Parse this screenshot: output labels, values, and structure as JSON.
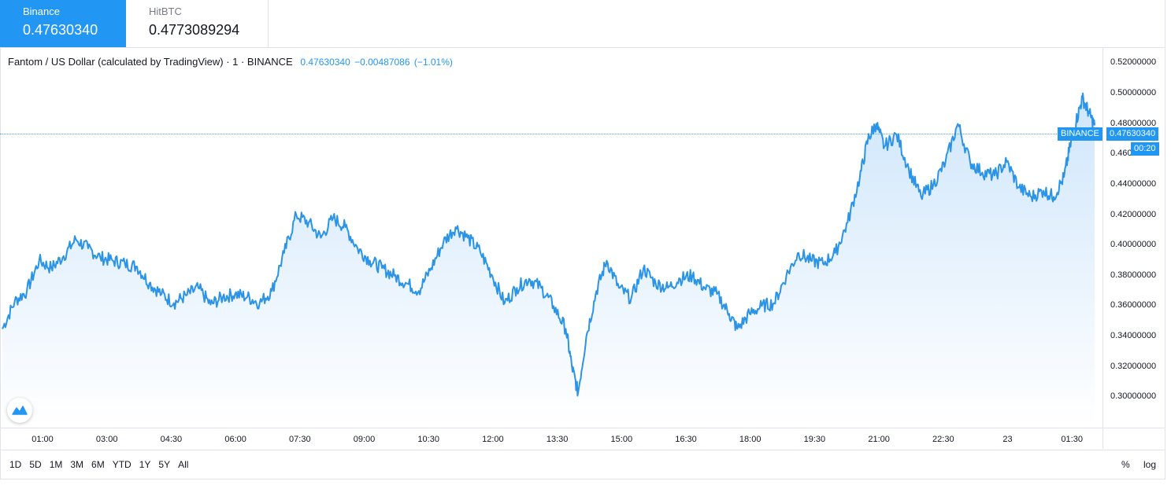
{
  "tabs": [
    {
      "name": "Binance",
      "price": "0.47630340",
      "active": true
    },
    {
      "name": "HitBTC",
      "price": "0.4773089294",
      "active": false
    }
  ],
  "legend": {
    "title": "Fantom / US Dollar (calculated by TradingView) · 1 · BINANCE",
    "last": "0.47630340",
    "change": "−0.00487086",
    "change_pct": "(−1.01%)"
  },
  "badges": {
    "exchange": "BINANCE",
    "price": "0.47630340",
    "countdown": "00:20"
  },
  "ranges": [
    "1D",
    "5D",
    "1M",
    "3M",
    "6M",
    "YTD",
    "1Y",
    "5Y",
    "All"
  ],
  "axis_options": {
    "percent": "%",
    "log": "log"
  },
  "colors": {
    "accent": "#2196f3",
    "line": "#2b94e6",
    "fill_top": "#cfe6fb",
    "fill_bottom": "#ffffff"
  },
  "icons": {
    "logo": "tradingview-logo-icon"
  },
  "chart_data": {
    "type": "area",
    "title": "Fantom / US Dollar (calculated by TradingView)",
    "xlabel": "",
    "ylabel": "",
    "ylim": [
      0.28,
      0.53
    ],
    "y_ticks": [
      "0.30000000",
      "0.32000000",
      "0.34000000",
      "0.36000000",
      "0.38000000",
      "0.40000000",
      "0.42000000",
      "0.44000000",
      "0.46000000",
      "0.48000000",
      "0.50000000",
      "0.52000000"
    ],
    "x_ticks": [
      "01:00",
      "03:00",
      "04:30",
      "06:00",
      "07:30",
      "09:00",
      "10:30",
      "12:00",
      "13:30",
      "15:00",
      "16:30",
      "18:00",
      "19:30",
      "21:00",
      "22:30",
      "23",
      "01:30"
    ],
    "grid": false,
    "series": [
      {
        "points": [
          [
            0,
            0.345
          ],
          [
            0.3,
            0.363
          ],
          [
            0.6,
            0.37
          ],
          [
            0.9,
            0.39
          ],
          [
            1.2,
            0.385
          ],
          [
            1.5,
            0.393
          ],
          [
            1.8,
            0.404
          ],
          [
            2.1,
            0.398
          ],
          [
            2.4,
            0.392
          ],
          [
            2.7,
            0.39
          ],
          [
            3.0,
            0.388
          ],
          [
            3.3,
            0.386
          ],
          [
            3.6,
            0.375
          ],
          [
            3.9,
            0.368
          ],
          [
            4.2,
            0.362
          ],
          [
            4.5,
            0.367
          ],
          [
            4.8,
            0.372
          ],
          [
            5.1,
            0.361
          ],
          [
            5.4,
            0.366
          ],
          [
            5.7,
            0.368
          ],
          [
            6.0,
            0.366
          ],
          [
            6.3,
            0.362
          ],
          [
            6.6,
            0.37
          ],
          [
            6.9,
            0.395
          ],
          [
            7.2,
            0.42
          ],
          [
            7.5,
            0.415
          ],
          [
            7.8,
            0.405
          ],
          [
            8.1,
            0.418
          ],
          [
            8.4,
            0.412
          ],
          [
            8.7,
            0.398
          ],
          [
            9.0,
            0.39
          ],
          [
            9.3,
            0.385
          ],
          [
            9.6,
            0.38
          ],
          [
            9.9,
            0.375
          ],
          [
            10.2,
            0.37
          ],
          [
            10.5,
            0.385
          ],
          [
            10.8,
            0.402
          ],
          [
            11.1,
            0.412
          ],
          [
            11.4,
            0.405
          ],
          [
            11.7,
            0.396
          ],
          [
            12.0,
            0.38
          ],
          [
            12.3,
            0.362
          ],
          [
            12.6,
            0.372
          ],
          [
            12.9,
            0.378
          ],
          [
            13.2,
            0.372
          ],
          [
            13.5,
            0.36
          ],
          [
            13.8,
            0.345
          ],
          [
            13.95,
            0.32
          ],
          [
            14.1,
            0.303
          ],
          [
            14.3,
            0.34
          ],
          [
            14.55,
            0.37
          ],
          [
            14.8,
            0.39
          ],
          [
            15.1,
            0.372
          ],
          [
            15.4,
            0.365
          ],
          [
            15.7,
            0.385
          ],
          [
            16.0,
            0.375
          ],
          [
            16.3,
            0.372
          ],
          [
            16.6,
            0.378
          ],
          [
            16.9,
            0.38
          ],
          [
            17.2,
            0.372
          ],
          [
            17.5,
            0.368
          ],
          [
            17.8,
            0.355
          ],
          [
            18.0,
            0.345
          ],
          [
            18.3,
            0.355
          ],
          [
            18.6,
            0.36
          ],
          [
            18.9,
            0.362
          ],
          [
            19.2,
            0.38
          ],
          [
            19.5,
            0.395
          ],
          [
            19.8,
            0.39
          ],
          [
            20.1,
            0.388
          ],
          [
            20.4,
            0.395
          ],
          [
            20.7,
            0.415
          ],
          [
            21.0,
            0.445
          ],
          [
            21.2,
            0.47
          ],
          [
            21.4,
            0.48
          ],
          [
            21.6,
            0.465
          ],
          [
            21.9,
            0.473
          ],
          [
            22.2,
            0.45
          ],
          [
            22.5,
            0.432
          ],
          [
            22.8,
            0.44
          ],
          [
            23.1,
            0.455
          ],
          [
            23.4,
            0.48
          ],
          [
            23.7,
            0.455
          ],
          [
            24.0,
            0.448
          ],
          [
            24.3,
            0.446
          ],
          [
            24.6,
            0.455
          ],
          [
            24.9,
            0.438
          ],
          [
            25.2,
            0.432
          ],
          [
            25.5,
            0.436
          ],
          [
            25.75,
            0.432
          ],
          [
            26.0,
            0.445
          ],
          [
            26.15,
            0.465
          ],
          [
            26.3,
            0.482
          ],
          [
            26.45,
            0.497
          ],
          [
            26.6,
            0.488
          ],
          [
            26.75,
            0.479
          ]
        ]
      }
    ]
  }
}
